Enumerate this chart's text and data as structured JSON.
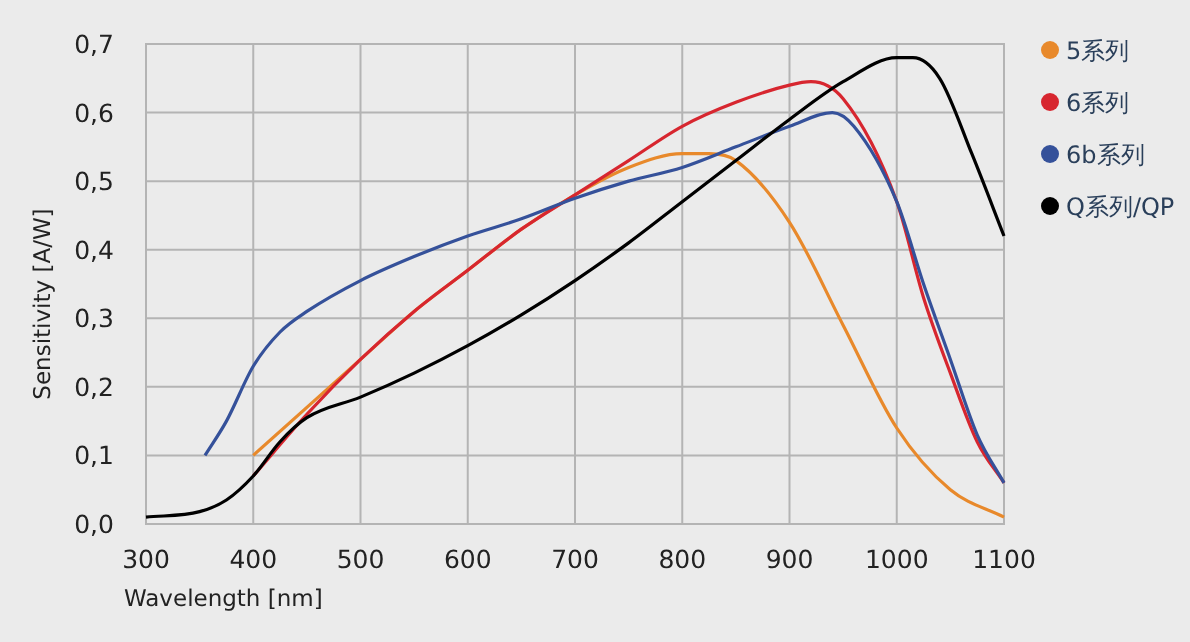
{
  "chart_data": {
    "type": "line",
    "xlabel": "Wavelength [nm]",
    "ylabel": "Sensitivity [A/W]",
    "xlim": [
      300,
      1100
    ],
    "ylim": [
      0,
      0.7
    ],
    "xticks": [
      300,
      400,
      500,
      600,
      700,
      800,
      900,
      1000,
      1100
    ],
    "yticks": [
      {
        "value": 0,
        "label": "0,0"
      },
      {
        "value": 0.1,
        "label": "0,1"
      },
      {
        "value": 0.2,
        "label": "0,2"
      },
      {
        "value": 0.3,
        "label": "0,3"
      },
      {
        "value": 0.4,
        "label": "0,4"
      },
      {
        "value": 0.5,
        "label": "0,5"
      },
      {
        "value": 0.6,
        "label": "0,6"
      },
      {
        "value": 0.7,
        "label": "0,7"
      }
    ],
    "grid": true,
    "legend": "top right",
    "series": [
      {
        "name": "5系列",
        "color": "#e8892b",
        "x": [
          400,
          450,
          500,
          550,
          600,
          650,
          700,
          750,
          800,
          825,
          850,
          900,
          950,
          1000,
          1050,
          1100
        ],
        "values": [
          0.1,
          0.17,
          0.24,
          0.31,
          0.37,
          0.43,
          0.48,
          0.52,
          0.54,
          0.54,
          0.53,
          0.44,
          0.29,
          0.14,
          0.05,
          0.01
        ]
      },
      {
        "name": "6系列",
        "color": "#d7262f",
        "x": [
          400,
          450,
          500,
          550,
          600,
          650,
          700,
          750,
          800,
          850,
          900,
          920,
          950,
          1000,
          1025,
          1050,
          1075,
          1100
        ],
        "values": [
          0.07,
          0.16,
          0.24,
          0.31,
          0.37,
          0.43,
          0.48,
          0.53,
          0.58,
          0.615,
          0.64,
          0.645,
          0.62,
          0.47,
          0.33,
          0.22,
          0.12,
          0.06
        ]
      },
      {
        "name": "6b系列",
        "color": "#35519a",
        "x": [
          355,
          375,
          400,
          425,
          450,
          500,
          550,
          600,
          650,
          700,
          750,
          800,
          850,
          900,
          940,
          960,
          1000,
          1025,
          1050,
          1075,
          1100
        ],
        "values": [
          0.1,
          0.15,
          0.23,
          0.28,
          0.31,
          0.355,
          0.39,
          0.42,
          0.445,
          0.475,
          0.5,
          0.52,
          0.55,
          0.58,
          0.6,
          0.58,
          0.47,
          0.35,
          0.24,
          0.13,
          0.06
        ]
      },
      {
        "name": "Q系列/QP",
        "color": "#000000",
        "x": [
          300,
          350,
          375,
          400,
          425,
          450,
          500,
          550,
          600,
          650,
          700,
          750,
          800,
          850,
          900,
          950,
          1000,
          1015,
          1040,
          1070,
          1100
        ],
        "values": [
          0.01,
          0.018,
          0.035,
          0.07,
          0.12,
          0.155,
          0.185,
          0.22,
          0.26,
          0.305,
          0.355,
          0.41,
          0.47,
          0.53,
          0.59,
          0.645,
          0.68,
          0.68,
          0.65,
          0.54,
          0.42
        ]
      }
    ]
  }
}
